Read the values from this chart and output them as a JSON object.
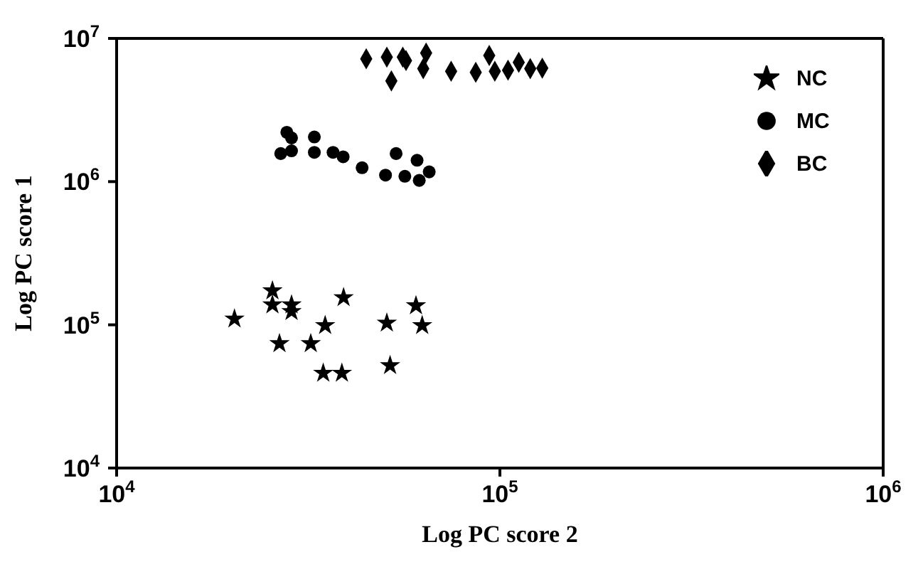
{
  "chart_data": {
    "type": "scatter",
    "xlabel": "Log PC score 2",
    "ylabel": "Log PC score 1",
    "log": "xy",
    "legend": "top right",
    "grid": false,
    "xlim": [
      10000,
      1000000
    ],
    "ylim": [
      10000,
      10000000
    ],
    "xticks": [
      {
        "value": 10000,
        "label": "10$^{4}$"
      },
      {
        "value": 100000,
        "label": "10$^{5}$"
      },
      {
        "value": 1000000,
        "label": "10$^{6}$"
      }
    ],
    "yticks": [
      {
        "value": 10000,
        "label": "10$^{4}$"
      },
      {
        "value": 100000,
        "label": "10$^{5}$"
      },
      {
        "value": 1000000,
        "label": "10$^{6}$"
      },
      {
        "value": 10000000,
        "label": "10$^{7}$"
      }
    ],
    "series": [
      {
        "name": "NC",
        "color": "#000000",
        "marker": "star",
        "x": [
          20300,
          25500,
          25500,
          28600,
          28600,
          26600,
          32100,
          35000,
          39100,
          34600,
          38700,
          50700,
          51700,
          60400,
          62700
        ],
        "values": [
          110000,
          173000,
          138000,
          138000,
          124000,
          74000,
          74000,
          99000,
          155000,
          46000,
          46000,
          103000,
          52000,
          136000,
          99000
        ]
      },
      {
        "name": "MC",
        "color": "#000000",
        "marker": "circle",
        "x": [
          26800,
          27800,
          28600,
          28600,
          32800,
          32800,
          36700,
          39000,
          43700,
          50300,
          53600,
          56500,
          60800,
          61600,
          65400
        ],
        "values": [
          1570000,
          2210000,
          2020000,
          1640000,
          2050000,
          1600000,
          1600000,
          1490000,
          1250000,
          1110000,
          1570000,
          1090000,
          1410000,
          1020000,
          1170000
        ]
      },
      {
        "name": "BC",
        "color": "#000000",
        "marker": "diamond",
        "x": [
          44800,
          50700,
          52100,
          55800,
          56900,
          64200,
          63100,
          74600,
          86500,
          93800,
          97000,
          105000,
          112000,
          120000,
          129000
        ],
        "values": [
          7200000,
          7400000,
          5050000,
          7400000,
          7000000,
          7900000,
          6150000,
          5900000,
          5800000,
          7600000,
          5900000,
          6000000,
          6800000,
          6150000,
          6200000
        ]
      }
    ]
  }
}
